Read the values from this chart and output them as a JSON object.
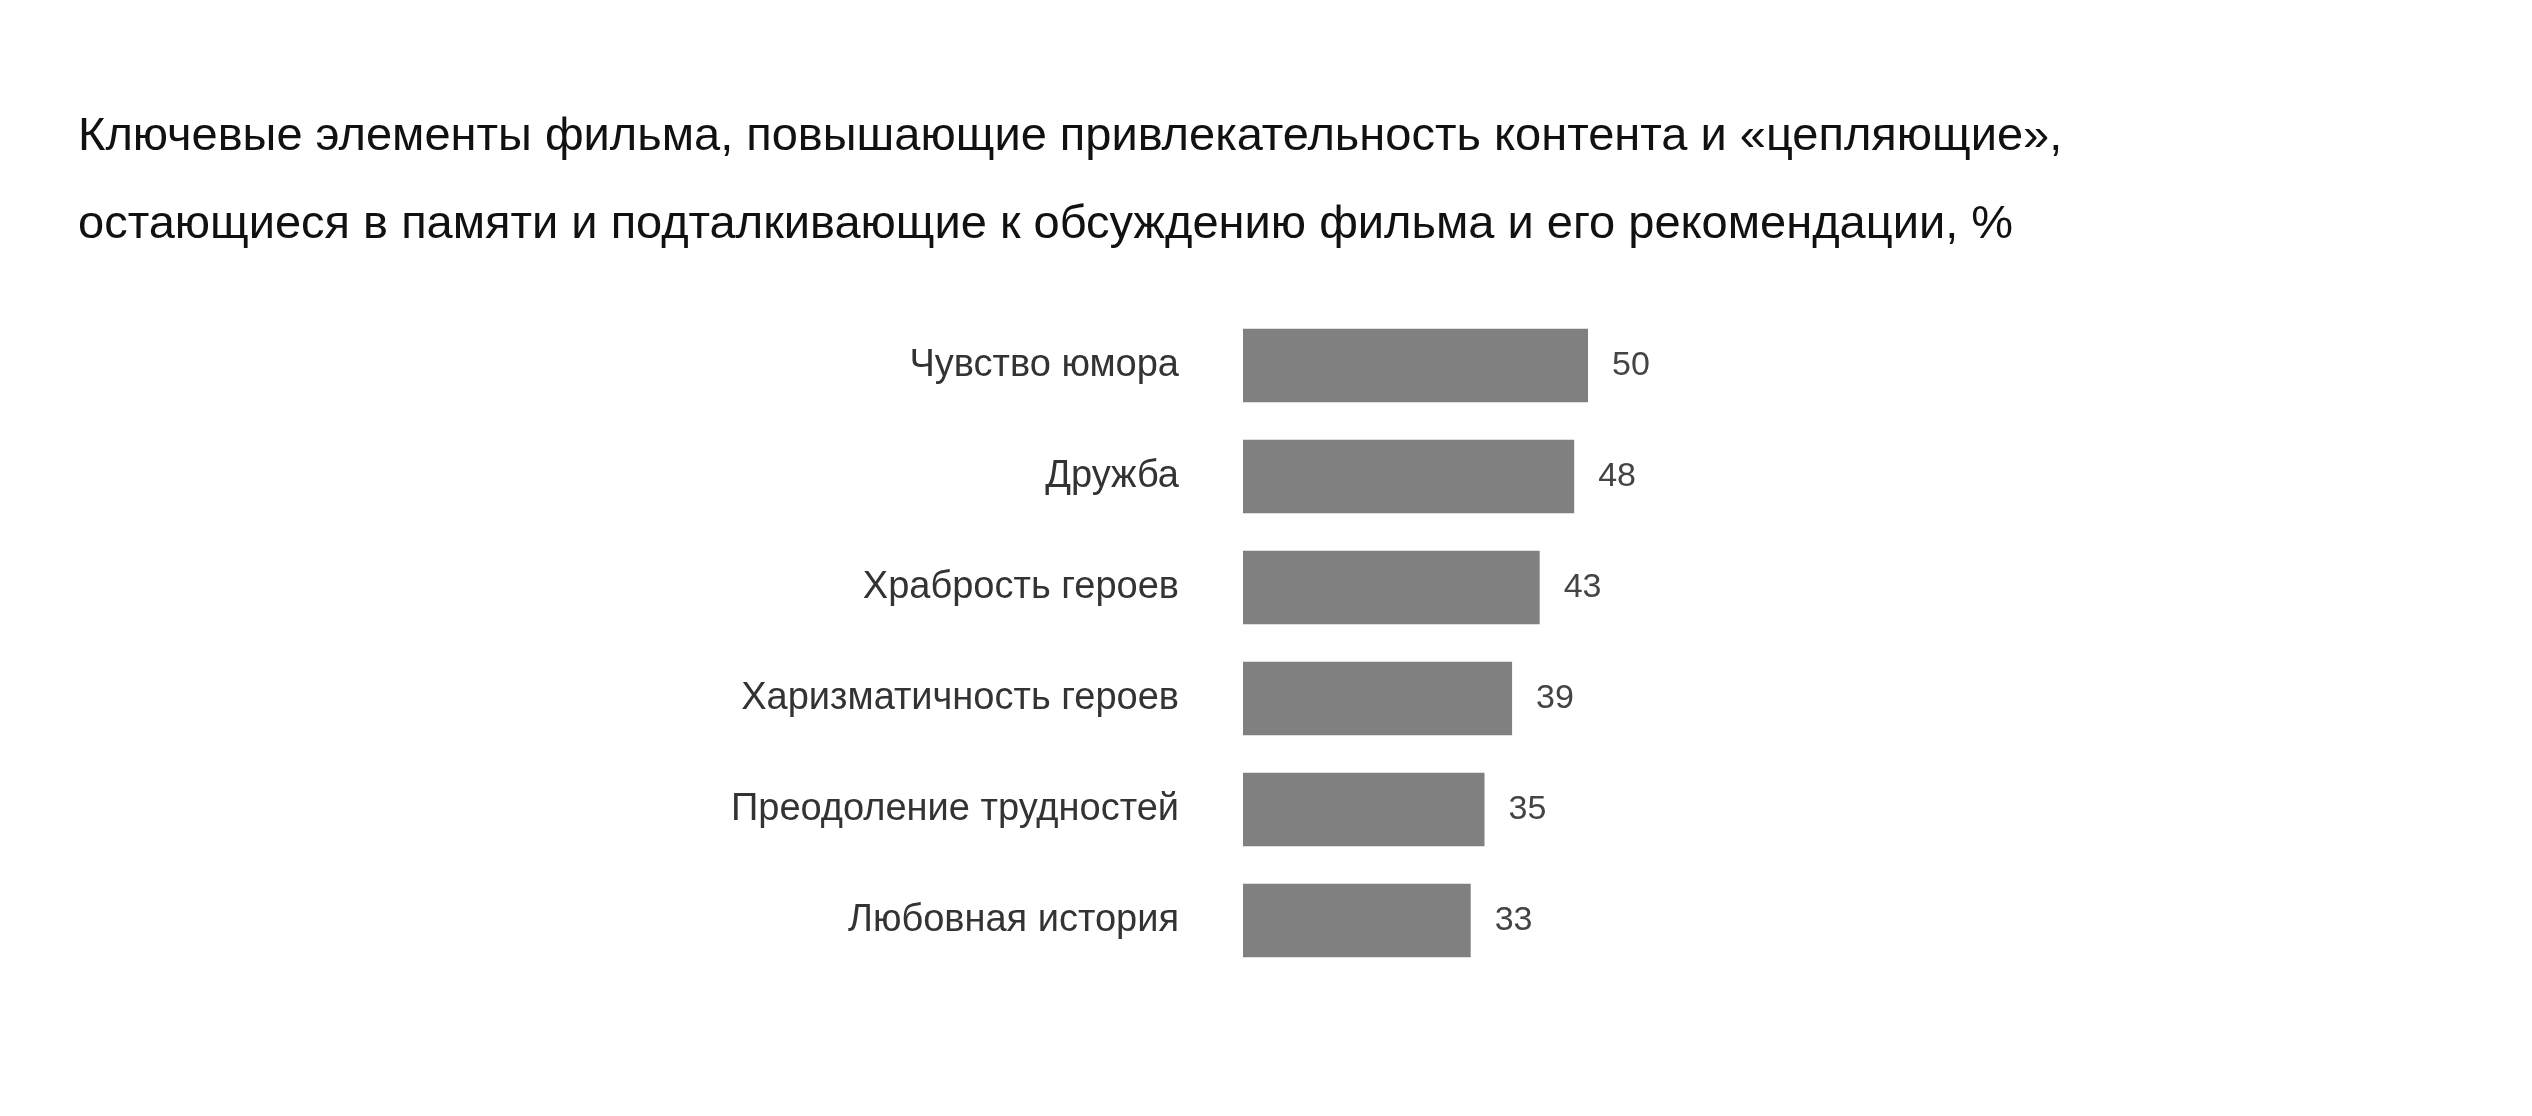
{
  "chart_data": {
    "type": "bar",
    "orientation": "horizontal",
    "title": "Ключевые элементы фильма, повышающие привлекательность контента и «цепляющие»,\nостающиеся в памяти и подталкивающие к обсуждению фильма и его рекомендации, %",
    "categories": [
      "Чувство юмора",
      "Дружба",
      "Храбрость героев",
      "Харизматичность героев",
      "Преодоление трудностей",
      "Любовная история"
    ],
    "values": [
      50,
      48,
      43,
      39,
      35,
      33
    ],
    "color": "#808080",
    "data_labels": true,
    "grid": false,
    "legend": false
  }
}
